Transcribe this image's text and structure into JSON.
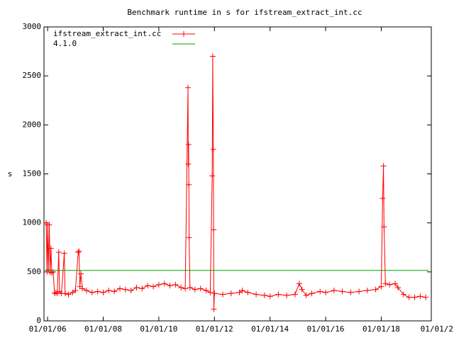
{
  "chart_data": {
    "type": "line",
    "title": "Benchmark runtime in s for ifstream_extract_int.cc",
    "y_label": "s",
    "legend": "top-left",
    "xlim": [
      2005.87,
      2019.8
    ],
    "ylim": [
      0,
      3000
    ],
    "yticks": [
      0,
      500,
      1000,
      1500,
      2000,
      2500,
      3000
    ],
    "xticks": [
      {
        "value": 2006,
        "label": "01/01/06"
      },
      {
        "value": 2008,
        "label": "01/01/08"
      },
      {
        "value": 2010,
        "label": "01/01/10"
      },
      {
        "value": 2012,
        "label": "01/01/12"
      },
      {
        "value": 2014,
        "label": "01/01/14"
      },
      {
        "value": 2016,
        "label": "01/01/16"
      },
      {
        "value": 2018,
        "label": "01/01/18"
      },
      {
        "value": 2020,
        "label": "01/01/2"
      }
    ],
    "series": [
      {
        "name": "ifstream_extract_int.cc",
        "color": "#ff0000",
        "markers": true,
        "x": [
          2005.95,
          2005.98,
          2006.0,
          2006.03,
          2006.06,
          2006.09,
          2006.12,
          2006.15,
          2006.2,
          2006.25,
          2006.3,
          2006.35,
          2006.4,
          2006.43,
          2006.5,
          2006.6,
          2006.63,
          2006.75,
          2006.9,
          2007.0,
          2007.1,
          2007.13,
          2007.16,
          2007.2,
          2007.25,
          2007.4,
          2007.6,
          2007.8,
          2008.0,
          2008.2,
          2008.4,
          2008.6,
          2008.8,
          2009.0,
          2009.2,
          2009.4,
          2009.6,
          2009.8,
          2010.0,
          2010.2,
          2010.4,
          2010.6,
          2010.8,
          2010.95,
          2011.05,
          2011.06,
          2011.07,
          2011.08,
          2011.09,
          2011.12,
          2011.3,
          2011.5,
          2011.7,
          2011.85,
          2011.92,
          2011.94,
          2011.96,
          2011.97,
          2011.98,
          2012.0,
          2012.3,
          2012.6,
          2012.9,
          2013.0,
          2013.2,
          2013.5,
          2013.8,
          2014.0,
          2014.3,
          2014.6,
          2014.9,
          2015.05,
          2015.15,
          2015.3,
          2015.5,
          2015.8,
          2016.0,
          2016.3,
          2016.6,
          2016.9,
          2017.2,
          2017.5,
          2017.8,
          2018.0,
          2018.05,
          2018.08,
          2018.1,
          2018.15,
          2018.3,
          2018.5,
          2018.6,
          2018.8,
          2019.0,
          2019.2,
          2019.4,
          2019.6
        ],
        "values": [
          1000,
          500,
          980,
          520,
          980,
          500,
          740,
          490,
          500,
          280,
          290,
          280,
          700,
          300,
          280,
          690,
          280,
          270,
          290,
          310,
          700,
          710,
          350,
          480,
          330,
          310,
          290,
          300,
          290,
          310,
          300,
          330,
          320,
          310,
          340,
          330,
          360,
          350,
          370,
          380,
          360,
          370,
          340,
          330,
          2380,
          1600,
          1800,
          1390,
          850,
          340,
          320,
          330,
          310,
          290,
          1480,
          2700,
          1750,
          930,
          120,
          280,
          270,
          280,
          290,
          310,
          290,
          270,
          260,
          250,
          270,
          260,
          270,
          380,
          320,
          260,
          280,
          300,
          290,
          310,
          300,
          290,
          300,
          310,
          320,
          350,
          1250,
          1580,
          960,
          380,
          370,
          380,
          340,
          270,
          240,
          240,
          250,
          240
        ]
      },
      {
        "name": "4.1.0",
        "color": "#00a000",
        "markers": false,
        "x": [
          2005.87,
          2019.7
        ],
        "values": [
          515,
          515
        ]
      }
    ]
  }
}
